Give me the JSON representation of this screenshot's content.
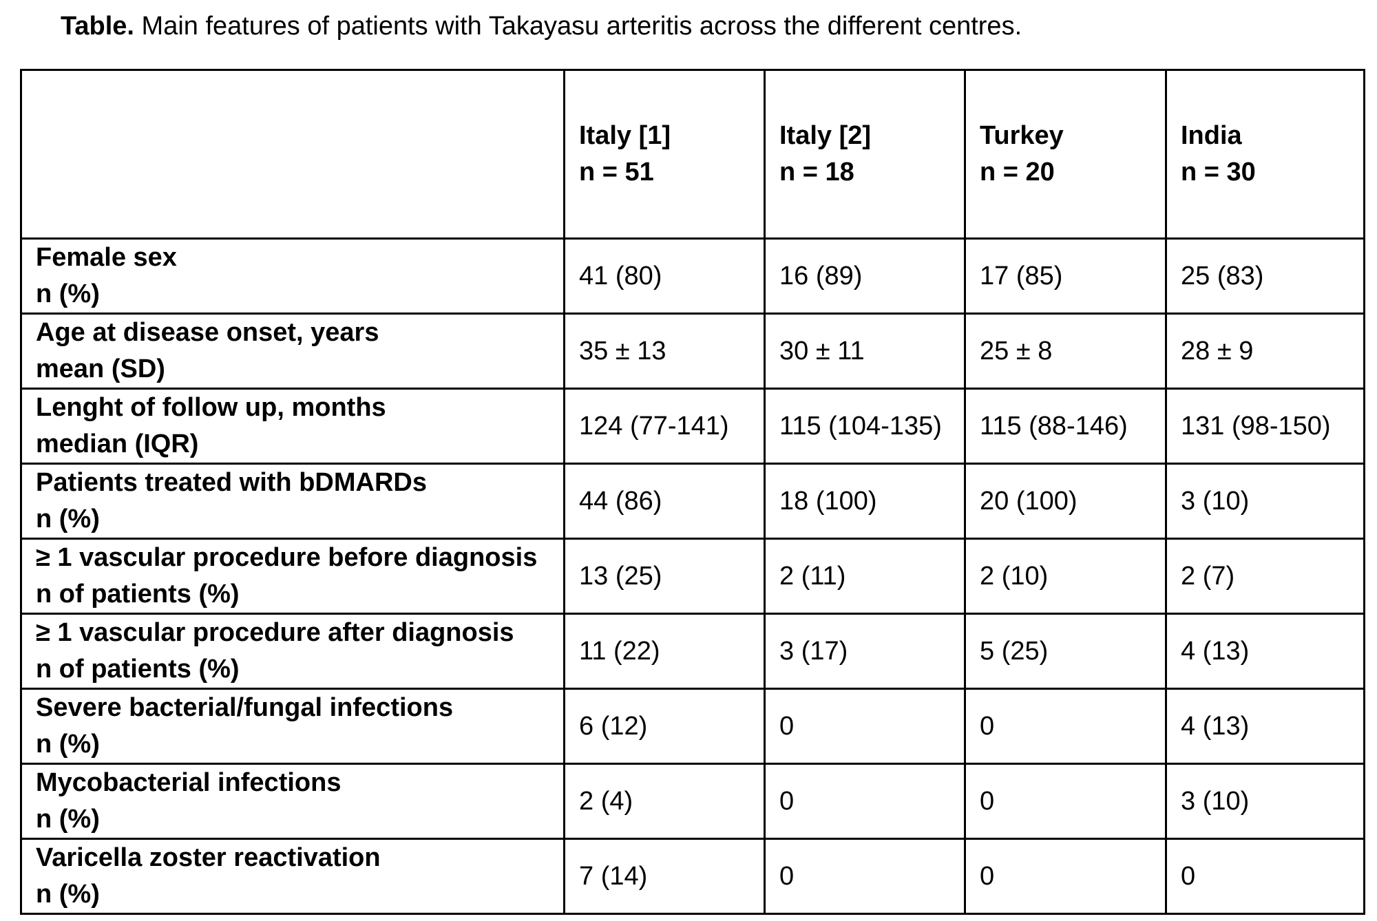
{
  "caption": {
    "label": "Table.",
    "text": " Main features of patients with Takayasu arteritis across the different centres."
  },
  "columns": [
    {
      "name": "Italy [1]",
      "n": "n = 51"
    },
    {
      "name": "Italy [2]",
      "n": "n = 18"
    },
    {
      "name": "Turkey",
      "n": "n = 20"
    },
    {
      "name": "India",
      "n": "n = 30"
    }
  ],
  "rows": [
    {
      "feature": "Female sex",
      "measure": "n (%)",
      "values": [
        "41 (80)",
        "16 (89)",
        "17 (85)",
        "25 (83)"
      ]
    },
    {
      "feature": "Age at disease onset, years",
      "measure": "mean (SD)",
      "values": [
        "35 ± 13",
        "30 ± 11",
        "25 ± 8",
        "28 ± 9"
      ]
    },
    {
      "feature": "Lenght of follow up, months",
      "measure": "median (IQR)",
      "values": [
        "124 (77-141)",
        "115 (104-135)",
        "115 (88-146)",
        "131 (98-150)"
      ]
    },
    {
      "feature": "Patients treated with bDMARDs",
      "measure": "n (%)",
      "values": [
        "44 (86)",
        "18 (100)",
        "20 (100)",
        "3 (10)"
      ]
    },
    {
      "feature": "≥ 1 vascular procedure before diagnosis",
      "measure": "n of patients (%)",
      "values": [
        "13 (25)",
        "2 (11)",
        "2 (10)",
        "2 (7)"
      ]
    },
    {
      "feature": "≥ 1 vascular procedure after diagnosis",
      "measure": "n of patients (%)",
      "values": [
        "11 (22)",
        "3 (17)",
        "5 (25)",
        "4 (13)"
      ]
    },
    {
      "feature": "Severe bacterial/fungal infections",
      "measure": "n (%)",
      "values": [
        "6 (12)",
        "0",
        "0",
        "4 (13)"
      ]
    },
    {
      "feature": "Mycobacterial infections",
      "measure": "n (%)",
      "values": [
        "2 (4)",
        "0",
        "0",
        "3 (10)"
      ]
    },
    {
      "feature": "Varicella zoster reactivation",
      "measure": "n (%)",
      "values": [
        "7 (14)",
        "0",
        "0",
        "0"
      ]
    }
  ]
}
